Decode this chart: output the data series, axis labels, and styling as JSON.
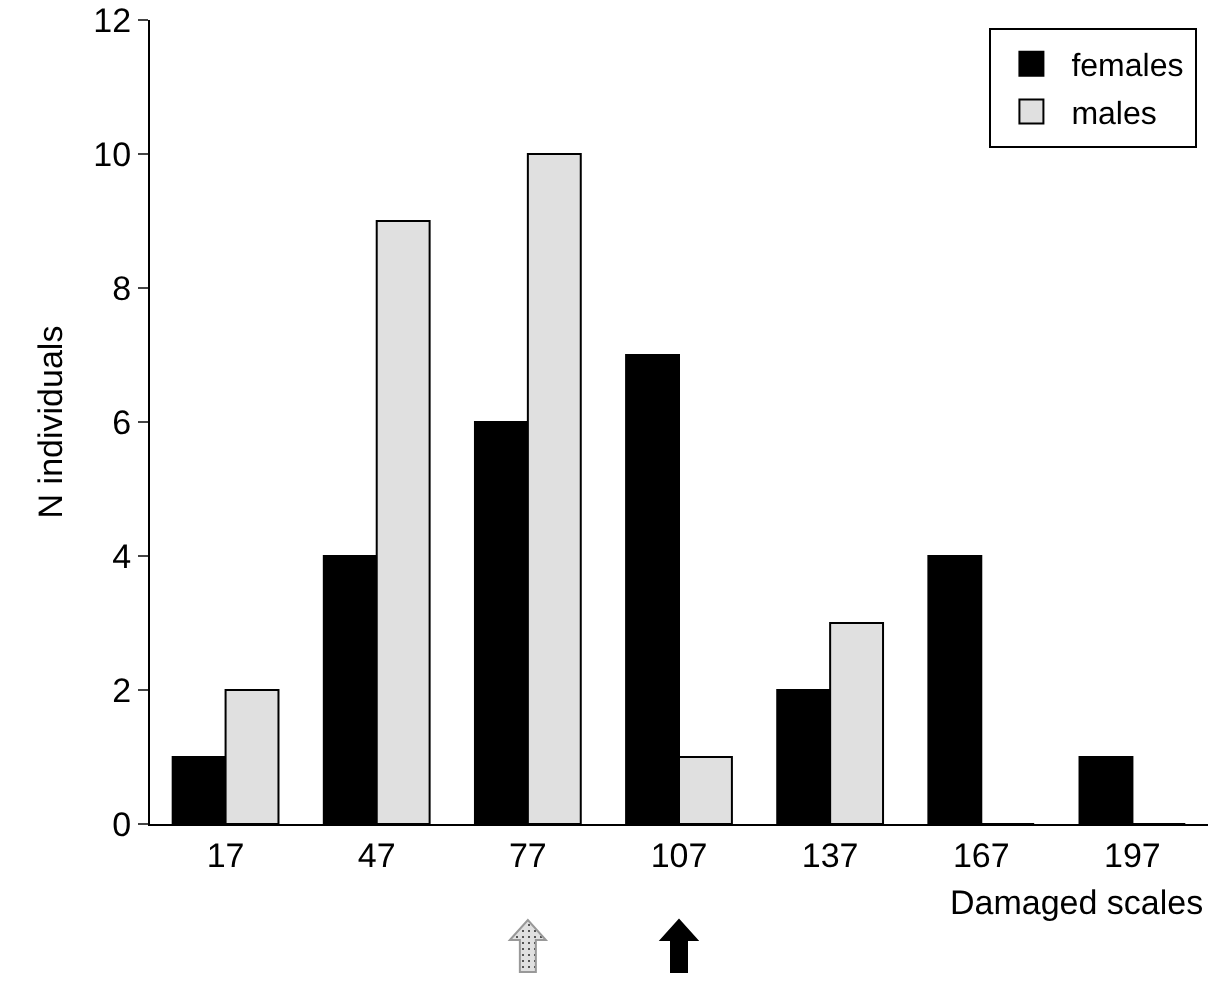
{
  "chart_data": {
    "type": "bar",
    "xlabel": "Damaged scales",
    "ylabel": "N individuals",
    "categories": [
      "17",
      "47",
      "77",
      "107",
      "137",
      "167",
      "197"
    ],
    "series": [
      {
        "name": "females",
        "color": "#000000",
        "values": [
          1,
          4,
          6,
          7,
          2,
          4,
          1
        ]
      },
      {
        "name": "males",
        "color": "#e0e0e0",
        "values": [
          2,
          9,
          10,
          1,
          3,
          0,
          0
        ]
      }
    ],
    "ylim": [
      0,
      12
    ],
    "yticks": [
      0,
      2,
      4,
      6,
      8,
      10,
      12
    ],
    "grid": false,
    "legend": "top right"
  }
}
